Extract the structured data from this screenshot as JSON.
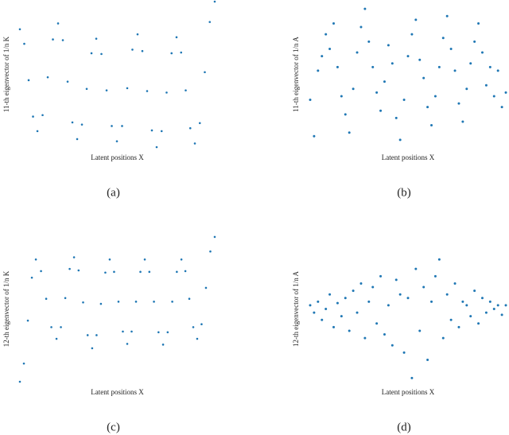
{
  "chart_data": [
    {
      "type": "scatter",
      "caption": "(a)",
      "xlabel": "Latent positions X",
      "ylabel": "11-th eigenvector of 1/n K",
      "color": "#1f77b4",
      "xlim": [
        0,
        1
      ],
      "ylim": [
        -1,
        1
      ],
      "x": [
        0,
        0.0225,
        0.045,
        0.0675,
        0.09,
        0.1165,
        0.143,
        0.1695,
        0.196,
        0.2205,
        0.245,
        0.2695,
        0.294,
        0.3185,
        0.343,
        0.3675,
        0.392,
        0.4185,
        0.445,
        0.4715,
        0.498,
        0.5245,
        0.551,
        0.5775,
        0.604,
        0.6285,
        0.653,
        0.6775,
        0.702,
        0.7275,
        0.753,
        0.7785,
        0.804,
        0.8275,
        0.851,
        0.8745,
        0.898,
        0.9235,
        0.949,
        0.9745,
        1.0
      ],
      "values": [
        0.62,
        0.42,
        -0.08,
        -0.58,
        -0.78,
        -0.56,
        -0.04,
        0.48,
        0.7,
        0.47,
        -0.1,
        -0.66,
        -0.89,
        -0.69,
        -0.2,
        0.29,
        0.49,
        0.28,
        -0.22,
        -0.71,
        -0.92,
        -0.71,
        -0.19,
        0.34,
        0.55,
        0.32,
        -0.23,
        -0.77,
        -1.0,
        -0.78,
        -0.25,
        0.29,
        0.51,
        0.3,
        -0.22,
        -0.74,
        -0.95,
        -0.67,
        0.03,
        0.72,
        1.0
      ]
    },
    {
      "type": "scatter",
      "caption": "(b)",
      "xlabel": "Latent positions X",
      "ylabel": "11-th eigenvector of 1/n A",
      "color": "#1f77b4",
      "xlim": [
        0,
        1
      ],
      "ylim": [
        -1,
        1
      ],
      "x": [
        0,
        0.02,
        0.04,
        0.06,
        0.08,
        0.1,
        0.12,
        0.14,
        0.16,
        0.18,
        0.2,
        0.22,
        0.24,
        0.26,
        0.28,
        0.3,
        0.32,
        0.34,
        0.36,
        0.38,
        0.4,
        0.42,
        0.44,
        0.46,
        0.48,
        0.5,
        0.52,
        0.54,
        0.56,
        0.58,
        0.6,
        0.62,
        0.64,
        0.66,
        0.68,
        0.7,
        0.72,
        0.74,
        0.76,
        0.78,
        0.8,
        0.82,
        0.84,
        0.86,
        0.88,
        0.9,
        0.92,
        0.94,
        0.96,
        0.98,
        1.0
      ],
      "values": [
        -0.35,
        -0.85,
        0.05,
        0.25,
        0.55,
        0.35,
        0.7,
        0.1,
        -0.3,
        -0.55,
        -0.8,
        -0.2,
        0.3,
        0.65,
        0.9,
        0.45,
        0.1,
        -0.25,
        -0.5,
        -0.1,
        0.4,
        0.15,
        -0.6,
        -0.9,
        -0.35,
        0.25,
        0.55,
        0.75,
        0.2,
        -0.05,
        -0.45,
        -0.7,
        -0.3,
        0.1,
        0.5,
        0.8,
        0.35,
        0.05,
        -0.4,
        -0.65,
        -0.2,
        0.15,
        0.45,
        0.7,
        0.3,
        -0.15,
        0.1,
        -0.3,
        0.05,
        -0.45,
        -0.25
      ]
    },
    {
      "type": "scatter",
      "caption": "(c)",
      "xlabel": "Latent positions X",
      "ylabel": "12-th eigenvector of 1/n K",
      "color": "#1f77b4",
      "xlim": [
        0,
        1
      ],
      "ylim": [
        -1,
        1
      ],
      "x": [
        0,
        0.0205,
        0.041,
        0.0615,
        0.082,
        0.1085,
        0.135,
        0.1615,
        0.188,
        0.2105,
        0.233,
        0.2555,
        0.278,
        0.3013,
        0.3245,
        0.3478,
        0.371,
        0.3935,
        0.416,
        0.4385,
        0.461,
        0.4835,
        0.506,
        0.5285,
        0.551,
        0.5735,
        0.596,
        0.6185,
        0.641,
        0.6645,
        0.688,
        0.7115,
        0.735,
        0.7585,
        0.782,
        0.8055,
        0.829,
        0.8493,
        0.8695,
        0.8898,
        0.91,
        0.9325,
        0.955,
        0.9775,
        1.0
      ],
      "values": [
        -1,
        -0.75,
        -0.16,
        0.43,
        0.68,
        0.52,
        0.14,
        -0.25,
        -0.41,
        -0.25,
        0.15,
        0.55,
        0.71,
        0.53,
        0.09,
        -0.36,
        -0.54,
        -0.36,
        0.07,
        0.5,
        0.68,
        0.51,
        0.1,
        -0.31,
        -0.48,
        -0.31,
        0.1,
        0.51,
        0.68,
        0.51,
        0.1,
        -0.32,
        -0.49,
        -0.32,
        0.1,
        0.51,
        0.68,
        0.52,
        0.14,
        -0.25,
        -0.41,
        -0.21,
        0.29,
        0.79,
        0.99
      ]
    },
    {
      "type": "scatter",
      "caption": "(d)",
      "xlabel": "Latent positions X",
      "ylabel": "12-th eigenvector of 1/n A",
      "color": "#1f77b4",
      "xlim": [
        0,
        1
      ],
      "ylim": [
        -1,
        1
      ],
      "x": [
        0,
        0.02,
        0.04,
        0.06,
        0.08,
        0.1,
        0.12,
        0.14,
        0.16,
        0.18,
        0.2,
        0.22,
        0.24,
        0.26,
        0.28,
        0.3,
        0.32,
        0.34,
        0.36,
        0.38,
        0.4,
        0.42,
        0.44,
        0.46,
        0.48,
        0.5,
        0.52,
        0.54,
        0.56,
        0.58,
        0.6,
        0.62,
        0.64,
        0.66,
        0.68,
        0.7,
        0.72,
        0.74,
        0.76,
        0.78,
        0.8,
        0.82,
        0.84,
        0.86,
        0.88,
        0.9,
        0.92,
        0.94,
        0.96,
        0.98,
        1.0
      ],
      "values": [
        0.05,
        -0.05,
        0.1,
        -0.15,
        0.0,
        0.2,
        -0.25,
        0.08,
        -0.1,
        0.15,
        -0.3,
        0.25,
        -0.05,
        0.35,
        -0.4,
        0.1,
        0.3,
        -0.2,
        0.45,
        -0.35,
        0.05,
        -0.5,
        0.4,
        0.2,
        -0.6,
        0.15,
        -0.95,
        0.55,
        -0.3,
        0.3,
        -0.7,
        0.1,
        0.45,
        0.68,
        -0.4,
        0.2,
        -0.15,
        0.35,
        -0.25,
        0.1,
        0.05,
        -0.1,
        0.25,
        -0.2,
        0.15,
        -0.05,
        0.1,
        0.0,
        0.05,
        -0.08,
        0.05
      ]
    }
  ]
}
